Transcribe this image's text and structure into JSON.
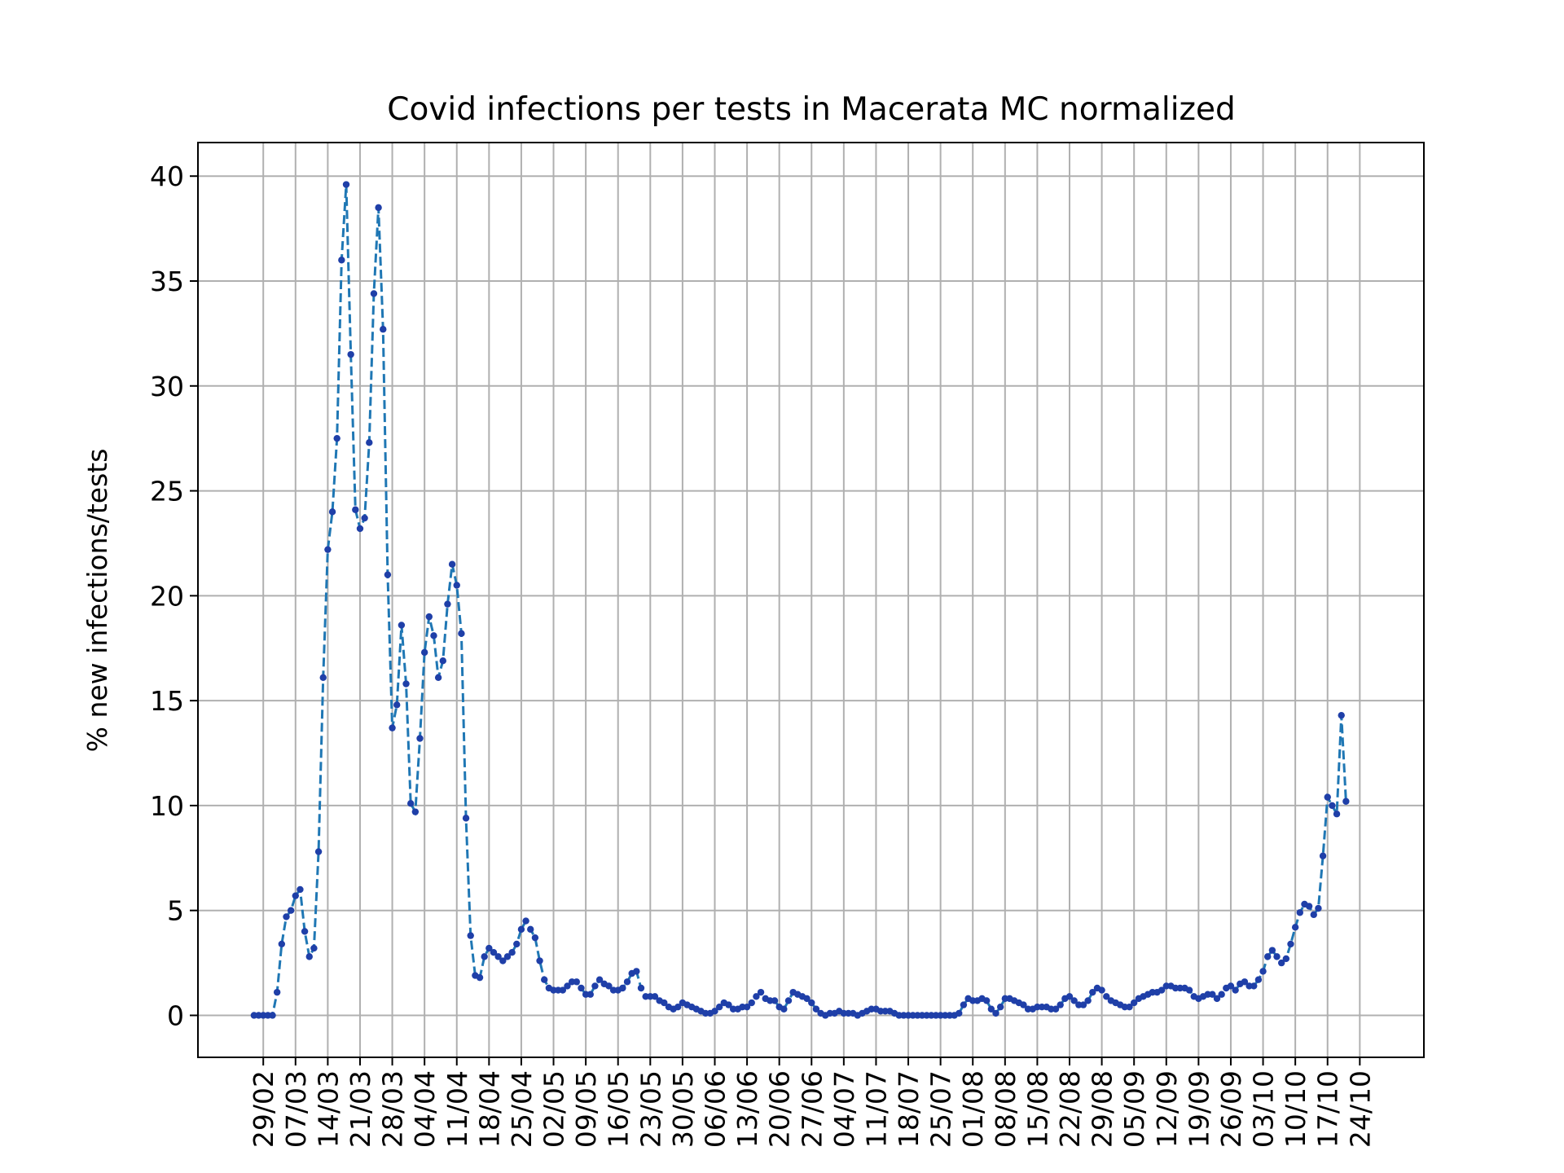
{
  "chart_data": {
    "type": "line",
    "title": "Covid infections per tests in Macerata MC normalized",
    "xlabel": "",
    "ylabel": "% new infections/tests",
    "ylim": [
      -2,
      41.6
    ],
    "y_ticks": [
      0,
      5,
      10,
      15,
      20,
      25,
      30,
      35,
      40
    ],
    "x_ticks": [
      "29/02",
      "07/03",
      "14/03",
      "21/03",
      "28/03",
      "04/04",
      "11/04",
      "18/04",
      "25/04",
      "02/05",
      "09/05",
      "16/05",
      "23/05",
      "30/05",
      "06/06",
      "13/06",
      "20/06",
      "27/06",
      "04/07",
      "11/07",
      "18/07",
      "25/07",
      "01/08",
      "08/08",
      "15/08",
      "22/08",
      "29/08",
      "05/09",
      "12/09",
      "19/09",
      "26/09",
      "03/10",
      "10/10",
      "17/10",
      "24/10"
    ],
    "grid": true,
    "line_color": "#1f77b4",
    "marker_color": "#1f3fa8",
    "start_date": "2020-02-27",
    "series": [
      {
        "values": [
          0,
          0,
          0,
          0,
          0,
          1.1,
          3.4,
          4.7,
          5,
          5.7,
          6,
          4,
          2.8,
          3.2,
          7.8,
          16.1,
          22.2,
          24,
          27.5,
          36,
          39.6,
          31.5,
          24.1,
          23.2,
          23.7,
          27.3,
          34.4,
          38.5,
          32.7,
          21,
          13.7,
          14.8,
          18.6,
          15.8,
          10.1,
          9.7,
          13.2,
          17.3,
          19,
          18.1,
          16.1,
          16.9,
          19.6,
          21.5,
          20.5,
          18.2,
          9.4,
          3.8,
          1.9,
          1.8,
          2.8,
          3.2,
          3,
          2.8,
          2.6,
          2.8,
          3,
          3.4,
          4.1,
          4.5,
          4.1,
          3.7,
          2.6,
          1.7,
          1.3,
          1.2,
          1.2,
          1.2,
          1.4,
          1.6,
          1.6,
          1.3,
          1,
          1,
          1.4,
          1.7,
          1.5,
          1.4,
          1.2,
          1.2,
          1.3,
          1.6,
          2,
          2.1,
          1.3,
          0.9,
          0.9,
          0.9,
          0.7,
          0.6,
          0.4,
          0.3,
          0.4,
          0.6,
          0.5,
          0.4,
          0.3,
          0.2,
          0.1,
          0.1,
          0.2,
          0.4,
          0.6,
          0.5,
          0.3,
          0.3,
          0.4,
          0.4,
          0.6,
          0.9,
          1.1,
          0.8,
          0.7,
          0.7,
          0.4,
          0.3,
          0.7,
          1.1,
          1,
          0.9,
          0.8,
          0.6,
          0.3,
          0.1,
          0,
          0.1,
          0.1,
          0.2,
          0.1,
          0.1,
          0.1,
          0,
          0.1,
          0.2,
          0.3,
          0.3,
          0.2,
          0.2,
          0.2,
          0.1,
          0,
          0,
          0,
          0,
          0,
          0,
          0,
          0,
          0,
          0,
          0,
          0,
          0,
          0.1,
          0.5,
          0.8,
          0.7,
          0.7,
          0.8,
          0.7,
          0.3,
          0.1,
          0.4,
          0.8,
          0.8,
          0.7,
          0.6,
          0.5,
          0.3,
          0.3,
          0.4,
          0.4,
          0.4,
          0.3,
          0.3,
          0.5,
          0.8,
          0.9,
          0.7,
          0.5,
          0.5,
          0.7,
          1.1,
          1.3,
          1.2,
          0.9,
          0.7,
          0.6,
          0.5,
          0.4,
          0.4,
          0.6,
          0.8,
          0.9,
          1,
          1.1,
          1.1,
          1.2,
          1.4,
          1.4,
          1.3,
          1.3,
          1.3,
          1.2,
          0.9,
          0.8,
          0.9,
          1,
          1,
          0.8,
          1,
          1.3,
          1.4,
          1.2,
          1.5,
          1.6,
          1.4,
          1.4,
          1.7,
          2.1,
          2.8,
          3.1,
          2.8,
          2.5,
          2.7,
          3.4,
          4.2,
          4.9,
          5.3,
          5.2,
          4.8,
          5.1,
          7.6,
          10.4,
          10,
          9.6,
          14.3,
          10.2
        ]
      }
    ]
  }
}
